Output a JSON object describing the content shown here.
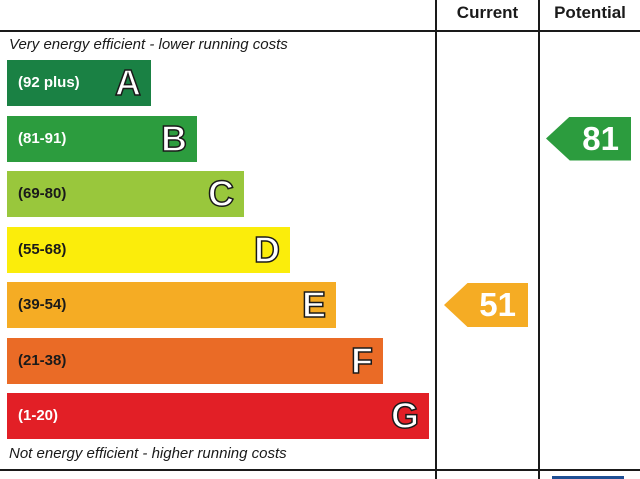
{
  "header": {
    "current_label": "Current",
    "potential_label": "Potential"
  },
  "notes": {
    "top": "Very energy efficient - lower running costs",
    "bottom": "Not energy efficient - higher running costs"
  },
  "chart_data": {
    "type": "bar",
    "categories": [
      "A",
      "B",
      "C",
      "D",
      "E",
      "F",
      "G"
    ],
    "bands": [
      {
        "letter": "A",
        "range": "(92 plus)",
        "color": "#1a8144",
        "text_color": "#ffffff"
      },
      {
        "letter": "B",
        "range": "(81-91)",
        "color": "#2c9c3e",
        "text_color": "#ffffff"
      },
      {
        "letter": "C",
        "range": "(69-80)",
        "color": "#99c73c",
        "text_color": "#1a1a1a"
      },
      {
        "letter": "D",
        "range": "(55-68)",
        "color": "#fbed0b",
        "text_color": "#1a1a1a"
      },
      {
        "letter": "E",
        "range": "(39-54)",
        "color": "#f5ac24",
        "text_color": "#1a1a1a"
      },
      {
        "letter": "F",
        "range": "(21-38)",
        "color": "#ea6b26",
        "text_color": "#1a1a1a"
      },
      {
        "letter": "G",
        "range": "(1-20)",
        "color": "#e21f26",
        "text_color": "#ffffff"
      }
    ],
    "current": {
      "value": 51,
      "band": "E",
      "color": "#f5ac24"
    },
    "potential": {
      "value": 81,
      "band": "B",
      "color": "#2c9c3e"
    }
  }
}
